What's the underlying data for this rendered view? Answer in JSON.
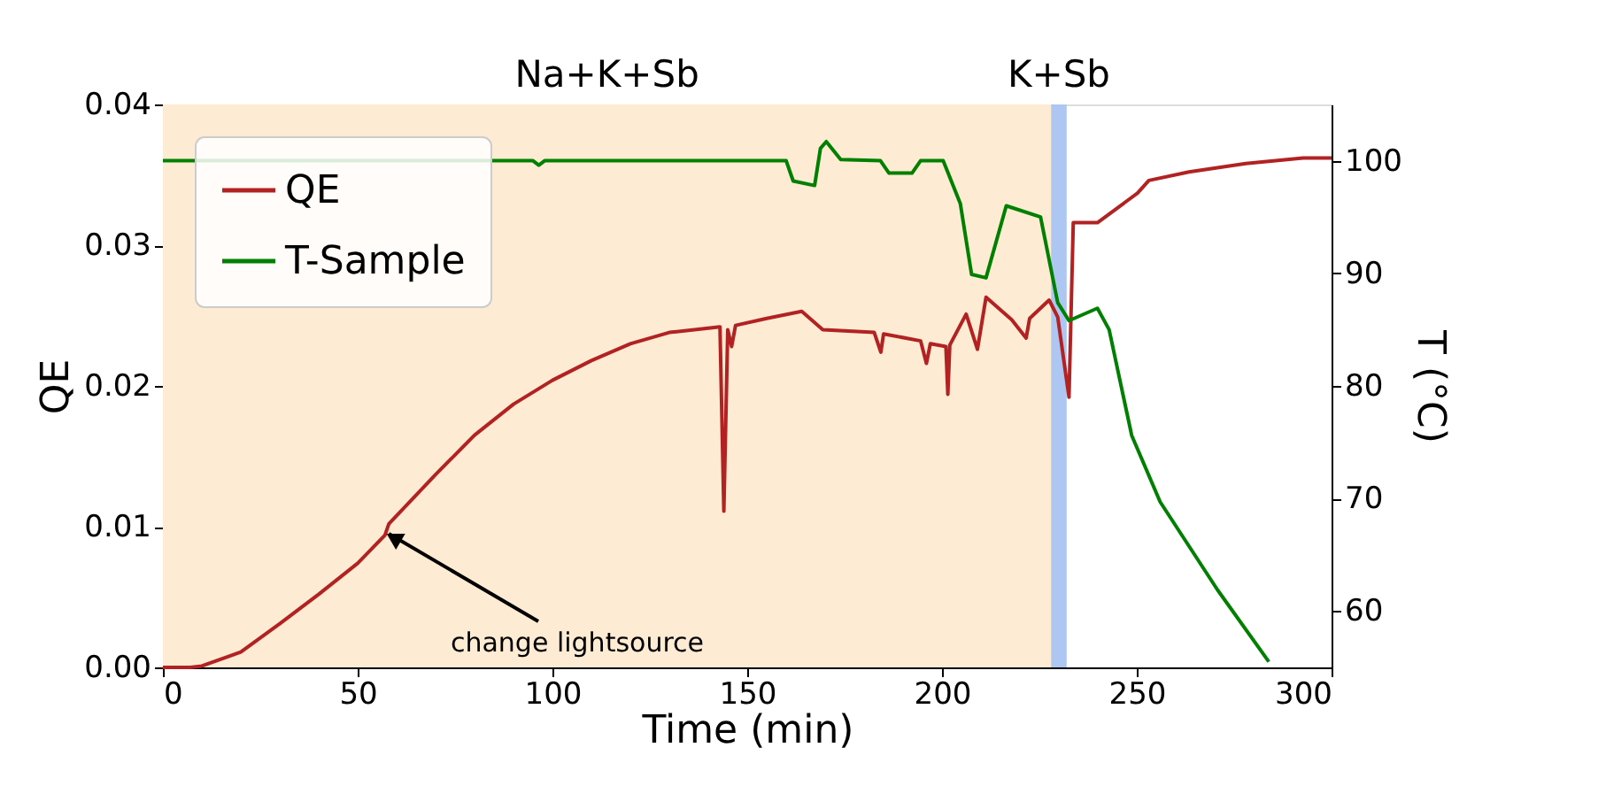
{
  "chart_data": {
    "type": "line",
    "xlabel": "Time (min)",
    "ylabel": "QE",
    "y2label": "T (°C)",
    "xlim": [
      0,
      300
    ],
    "xticks": [
      0,
      50,
      100,
      150,
      200,
      250,
      300
    ],
    "ylim": [
      0,
      0.04
    ],
    "yticks": [
      {
        "value": 0,
        "label": "0.00"
      },
      {
        "value": 0.01,
        "label": "0.01"
      },
      {
        "value": 0.02,
        "label": "0.02"
      },
      {
        "value": 0.03,
        "label": "0.03"
      },
      {
        "value": 0.04,
        "label": "0.04"
      }
    ],
    "y2lim": [
      55,
      105
    ],
    "y2ticks": [
      60,
      70,
      80,
      90,
      100
    ],
    "series": [
      {
        "name": "QE",
        "color": "#b22222",
        "x": [
          0,
          7,
          10,
          20,
          30,
          40,
          50,
          57,
          58,
          70,
          80,
          90,
          100,
          110,
          120,
          130,
          140,
          143,
          144,
          145,
          146,
          147,
          155,
          164,
          169.4,
          182.6,
          184.3,
          185,
          194.5,
          196,
          197,
          201,
          201.5,
          202,
          206.2,
          209.1,
          211.3,
          217.9,
          221.6,
          222.5,
          227.5,
          229.7,
          232.6,
          233.7,
          239.9,
          250.2,
          253.1,
          263.4,
          278,
          292.7,
          300
        ],
        "values": [
          0,
          0,
          0.0001,
          0.0011,
          0.0031,
          0.0052,
          0.0074,
          0.0094,
          0.0102,
          0.0137,
          0.0165,
          0.0187,
          0.0204,
          0.0218,
          0.023,
          0.0238,
          0.0241,
          0.0242,
          0.0111,
          0.024,
          0.0228,
          0.0243,
          0.0248,
          0.0253,
          0.024,
          0.0238,
          0.0224,
          0.0237,
          0.0232,
          0.0216,
          0.023,
          0.0228,
          0.0194,
          0.0229,
          0.0251,
          0.0226,
          0.0263,
          0.0247,
          0.0234,
          0.0248,
          0.0261,
          0.0249,
          0.0192,
          0.0316,
          0.0316,
          0.0337,
          0.0346,
          0.0352,
          0.0358,
          0.0362,
          0.0362
        ]
      },
      {
        "name": "T-Sample",
        "color": "#008000",
        "x": [
          0,
          95,
          96.5,
          98,
          146,
          160,
          161.8,
          167.3,
          168.8,
          170.3,
          174,
          184.2,
          186.4,
          192.3,
          194.5,
          200.3,
          204.7,
          207.6,
          211.3,
          216.5,
          225.3,
          229.7,
          232.6,
          239.9,
          242.9,
          248.7,
          256,
          270.7,
          283.9
        ],
        "values": [
          100,
          100,
          99.6,
          100,
          100,
          100,
          98.2,
          97.8,
          101.1,
          101.7,
          100.1,
          100,
          98.9,
          98.9,
          100,
          100,
          96.2,
          89.9,
          89.6,
          96,
          95,
          87.4,
          85.8,
          86.9,
          85,
          75.6,
          69.7,
          61.9,
          55.5
        ],
        "axis": "y2"
      }
    ],
    "bands": [
      {
        "axis": "x",
        "from": 0,
        "to": 228,
        "label": "Na+K+Sb",
        "color": "#fdebd3"
      },
      {
        "axis": "x",
        "from": 228,
        "to": 232,
        "label": "K+Sb",
        "color": "#aec7f2"
      }
    ],
    "annotations": [
      {
        "text": "change lightsource",
        "x": 58,
        "y": 0.0095
      }
    ],
    "legend": "top left",
    "grid": false,
    "line_style": "solid",
    "marker": "none"
  }
}
